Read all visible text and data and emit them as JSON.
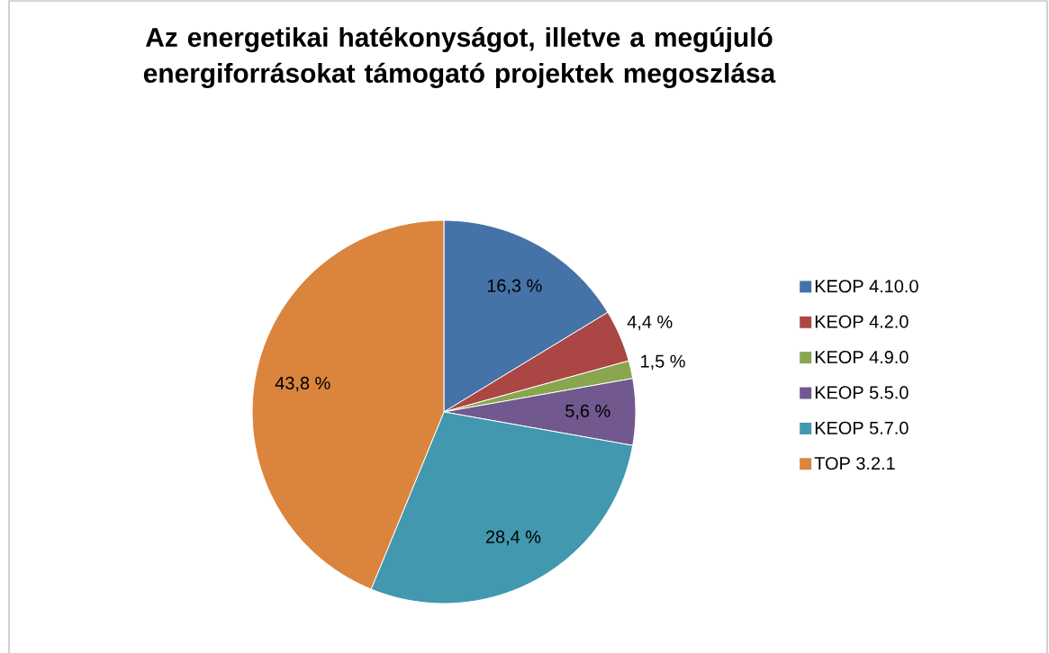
{
  "chart_data": {
    "type": "pie",
    "title": "Az energetikai hatékonyságot, illetve a megújuló energiforrásokat támogató projektek megoszlása",
    "categories": [
      "KEOP 4.10.0",
      "KEOP 4.2.0",
      "KEOP 4.9.0",
      "KEOP 5.5.0",
      "KEOP 5.7.0",
      "TOP 3.2.1"
    ],
    "values": [
      16.3,
      4.4,
      1.5,
      5.6,
      28.4,
      43.8
    ],
    "value_labels": [
      "16,3 %",
      "4,4 %",
      "1,5 %",
      "5,6 %",
      "28,4 %",
      "43,8 %"
    ],
    "colors": [
      "#4572a7",
      "#aa4643",
      "#89a54e",
      "#71588f",
      "#4198af",
      "#db843d"
    ],
    "legend": "right"
  }
}
